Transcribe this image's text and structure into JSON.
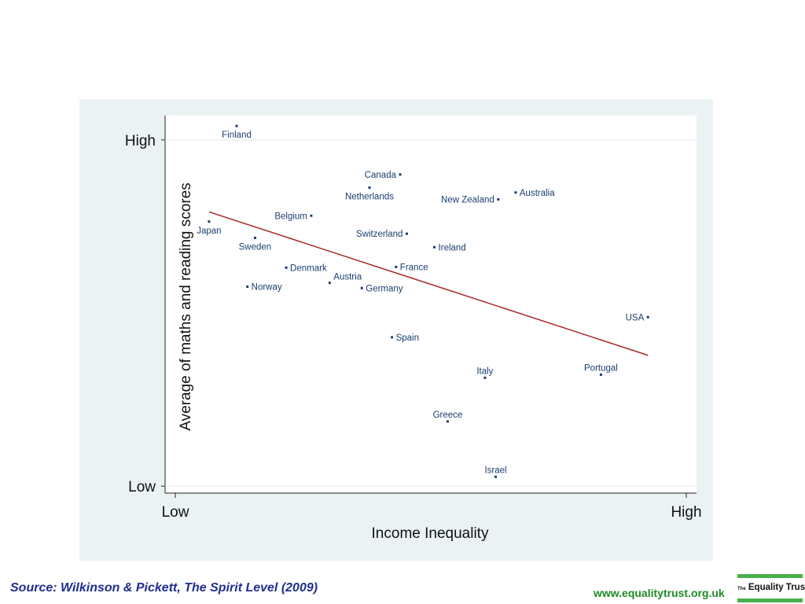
{
  "chart_data": {
    "type": "scatter",
    "xlabel": "Income Inequality",
    "ylabel": "Average of maths and reading scores",
    "x_ticks": [
      {
        "value": 0,
        "label": "Low"
      },
      {
        "value": 1,
        "label": "High"
      }
    ],
    "y_ticks": [
      {
        "value": 0,
        "label": "Low"
      },
      {
        "value": 1,
        "label": "High"
      }
    ],
    "xlim": [
      -0.02,
      1.02
    ],
    "ylim": [
      -0.02,
      1.07
    ],
    "points": [
      {
        "name": "Finland",
        "x": 0.12,
        "y": 1.04,
        "label_pos": "below"
      },
      {
        "name": "Canada",
        "x": 0.44,
        "y": 0.9,
        "label_pos": "left"
      },
      {
        "name": "Netherlands",
        "x": 0.38,
        "y": 0.862,
        "label_pos": "below"
      },
      {
        "name": "Australia",
        "x": 0.666,
        "y": 0.848,
        "label_pos": "right"
      },
      {
        "name": "New Zealand",
        "x": 0.632,
        "y": 0.828,
        "label_pos": "left"
      },
      {
        "name": "Belgium",
        "x": 0.266,
        "y": 0.781,
        "label_pos": "left"
      },
      {
        "name": "Japan",
        "x": 0.066,
        "y": 0.764,
        "label_pos": "below"
      },
      {
        "name": "Switzerland",
        "x": 0.453,
        "y": 0.729,
        "label_pos": "left"
      },
      {
        "name": "Sweden",
        "x": 0.156,
        "y": 0.717,
        "label_pos": "below"
      },
      {
        "name": "Ireland",
        "x": 0.507,
        "y": 0.69,
        "label_pos": "right"
      },
      {
        "name": "Denmark",
        "x": 0.217,
        "y": 0.631,
        "label_pos": "right"
      },
      {
        "name": "France",
        "x": 0.432,
        "y": 0.633,
        "label_pos": "right"
      },
      {
        "name": "Austria",
        "x": 0.302,
        "y": 0.587,
        "label_pos": "above-right"
      },
      {
        "name": "Norway",
        "x": 0.141,
        "y": 0.576,
        "label_pos": "right"
      },
      {
        "name": "Germany",
        "x": 0.365,
        "y": 0.572,
        "label_pos": "right"
      },
      {
        "name": "USA",
        "x": 0.925,
        "y": 0.488,
        "label_pos": "left"
      },
      {
        "name": "Spain",
        "x": 0.424,
        "y": 0.43,
        "label_pos": "right"
      },
      {
        "name": "Italy",
        "x": 0.606,
        "y": 0.313,
        "label_pos": "above"
      },
      {
        "name": "Portugal",
        "x": 0.833,
        "y": 0.322,
        "label_pos": "above"
      },
      {
        "name": "Greece",
        "x": 0.533,
        "y": 0.187,
        "label_pos": "above"
      },
      {
        "name": "Israel",
        "x": 0.627,
        "y": 0.027,
        "label_pos": "above"
      }
    ],
    "fit_line": {
      "x": [
        0.066,
        0.925
      ],
      "y": [
        0.792,
        0.378
      ],
      "color": "#a52a2a"
    },
    "marker_color": "#1a3e6e",
    "grid": false
  },
  "footer": {
    "source": "Source: Wilkinson & Pickett, The Spirit Level (2009)",
    "url": "www.equalitytrust.org.uk",
    "logo_prefix": "The",
    "logo_name": "Equality Trust"
  }
}
